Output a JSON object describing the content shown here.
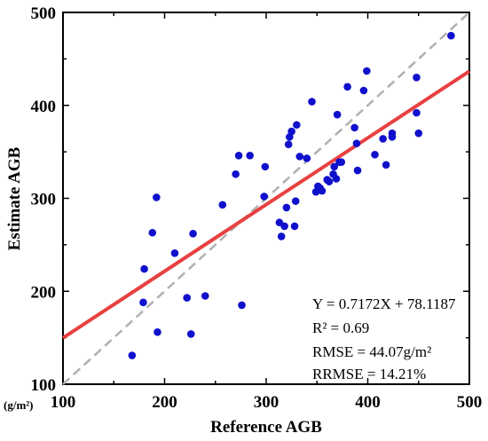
{
  "chart_data": {
    "type": "scatter",
    "xlabel": "Reference AGB",
    "ylabel": "Estimate AGB",
    "unit_label": "(g/m²)",
    "xlim": [
      100,
      500
    ],
    "ylim": [
      100,
      500
    ],
    "xticks": [
      "100",
      "200",
      "300",
      "400",
      "500"
    ],
    "yticks": [
      "100",
      "200",
      "300",
      "400",
      "500"
    ],
    "grid": false,
    "point_color": "#1010cc",
    "fit_line": {
      "slope": 0.7172,
      "intercept": 78.1187,
      "color": "#e84040"
    },
    "identity_line": {
      "style": "dashed",
      "color": "#b0b0b0"
    },
    "annotations": [
      "Y = 0.7172X + 78.1187",
      "R² = 0.69",
      "RMSE = 44.07g/m²",
      "RRMSE = 14.21%"
    ],
    "points": [
      [
        168,
        131
      ],
      [
        179,
        188
      ],
      [
        180,
        224
      ],
      [
        188,
        263
      ],
      [
        192,
        301
      ],
      [
        193,
        156
      ],
      [
        210,
        241
      ],
      [
        222,
        193
      ],
      [
        226,
        154
      ],
      [
        228,
        262
      ],
      [
        240,
        195
      ],
      [
        257,
        293
      ],
      [
        270,
        326
      ],
      [
        273,
        346
      ],
      [
        276,
        185
      ],
      [
        284,
        346
      ],
      [
        298,
        302
      ],
      [
        299,
        334
      ],
      [
        313,
        274
      ],
      [
        315,
        259
      ],
      [
        318,
        270
      ],
      [
        320,
        290
      ],
      [
        322,
        358
      ],
      [
        323,
        366
      ],
      [
        325,
        372
      ],
      [
        328,
        270
      ],
      [
        329,
        297
      ],
      [
        330,
        379
      ],
      [
        333,
        345
      ],
      [
        340,
        343
      ],
      [
        345,
        404
      ],
      [
        349,
        307
      ],
      [
        351,
        313
      ],
      [
        353,
        311
      ],
      [
        355,
        308
      ],
      [
        360,
        320
      ],
      [
        362,
        318
      ],
      [
        366,
        326
      ],
      [
        367,
        334
      ],
      [
        369,
        321
      ],
      [
        370,
        390
      ],
      [
        372,
        339
      ],
      [
        374,
        339
      ],
      [
        380,
        420
      ],
      [
        387,
        376
      ],
      [
        389,
        359
      ],
      [
        390,
        330
      ],
      [
        396,
        416
      ],
      [
        399,
        437
      ],
      [
        407,
        347
      ],
      [
        415,
        364
      ],
      [
        418,
        336
      ],
      [
        424,
        370
      ],
      [
        424,
        366
      ],
      [
        448,
        392
      ],
      [
        448,
        430
      ],
      [
        450,
        370
      ],
      [
        482,
        475
      ]
    ]
  }
}
